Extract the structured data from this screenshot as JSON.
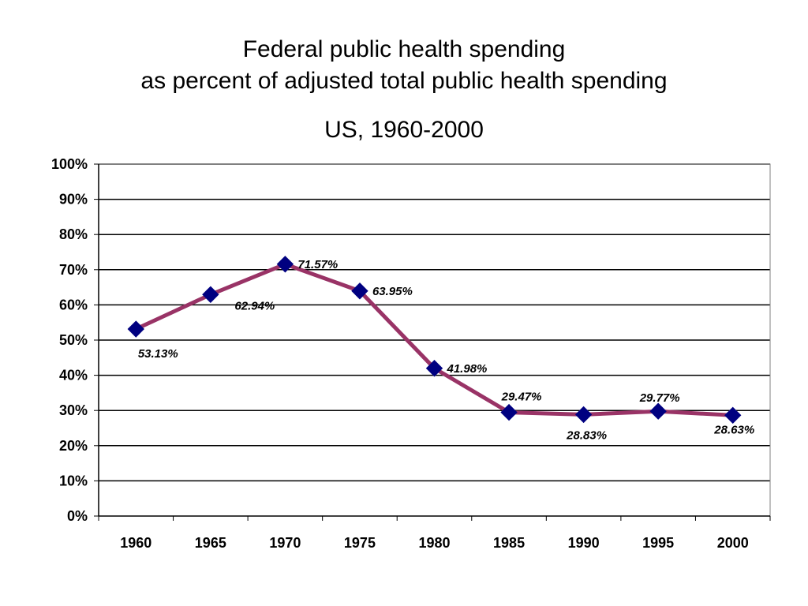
{
  "chart_data": {
    "type": "line",
    "title_lines": [
      "Federal public health spending",
      "as percent of adjusted total public health spending"
    ],
    "subtitle": "US, 1960-2000",
    "xlabel": "",
    "ylabel": "",
    "categories": [
      "1960",
      "1965",
      "1970",
      "1975",
      "1980",
      "1985",
      "1990",
      "1995",
      "2000"
    ],
    "series": [
      {
        "values": [
          53.13,
          62.94,
          71.57,
          63.95,
          41.98,
          29.47,
          28.83,
          29.77,
          28.63
        ],
        "data_labels": [
          "53.13%",
          "62.94%",
          "71.57%",
          "63.95%",
          "41.98%",
          "29.47%",
          "28.83%",
          "29.77%",
          "28.63%"
        ],
        "line_color": "#993366",
        "marker": "diamond",
        "marker_color": "#000080"
      }
    ],
    "ylim": [
      0,
      100
    ],
    "y_ticks": [
      0,
      10,
      20,
      30,
      40,
      50,
      60,
      70,
      80,
      90,
      100
    ],
    "y_tick_labels": [
      "0%",
      "10%",
      "20%",
      "30%",
      "40%",
      "50%",
      "60%",
      "70%",
      "80%",
      "90%",
      "100%"
    ],
    "grid": true,
    "legend": "none"
  }
}
